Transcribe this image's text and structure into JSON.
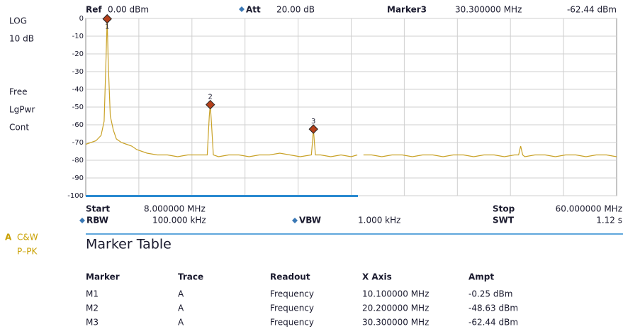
{
  "header": {
    "ref_label": "Ref",
    "ref_value": "0.00 dBm",
    "att_label": "Att",
    "att_value": "20.00 dB",
    "marker_label": "Marker3",
    "marker_freq": "30.300000 MHz",
    "marker_ampt": "-62.44 dBm"
  },
  "left_panel": {
    "scale": "LOG",
    "div": "10 dB",
    "mode1": "Free",
    "mode2": "LgPwr",
    "mode3": "Cont",
    "trace": "A",
    "trace_mode1": "C&W",
    "trace_mode2": "P–PK"
  },
  "footer": {
    "start_label": "Start",
    "start_value": "8.000000 MHz",
    "stop_label": "Stop",
    "stop_value": "60.000000 MHz",
    "rbw_label": "RBW",
    "rbw_value": "100.000 kHz",
    "vbw_label": "VBW",
    "vbw_value": "1.000 kHz",
    "swt_label": "SWT",
    "swt_value": "1.12 s"
  },
  "marker_table": {
    "title": "Marker Table",
    "headers": [
      "Marker",
      "Trace",
      "Readout",
      "X Axis",
      "Ampt"
    ],
    "rows": [
      [
        "M1",
        "A",
        "Frequency",
        "10.100000 MHz",
        "-0.25 dBm"
      ],
      [
        "M2",
        "A",
        "Frequency",
        "20.200000 MHz",
        "-48.63 dBm"
      ],
      [
        "M3",
        "A",
        "Frequency",
        "30.300000 MHz",
        "-62.44 dBm"
      ]
    ]
  },
  "chart_data": {
    "type": "line",
    "xlim": [
      8,
      60
    ],
    "ylim": [
      -100,
      0
    ],
    "yticks": [
      0,
      -10,
      -20,
      -30,
      -40,
      -50,
      -60,
      -70,
      -80,
      -90,
      -100
    ],
    "grid": true,
    "series": [
      {
        "name": "A",
        "color": "#c9a227",
        "x": [
          8,
          8.5,
          9,
          9.5,
          9.8,
          10,
          10.1,
          10.2,
          10.4,
          10.7,
          11,
          11.5,
          12,
          12.5,
          13,
          14,
          15,
          16,
          17,
          18,
          19,
          19.9,
          20.1,
          20.2,
          20.3,
          20.5,
          21,
          22,
          23,
          24,
          25,
          26,
          27,
          28,
          29,
          30.1,
          30.2,
          30.3,
          30.4,
          30.5,
          31,
          32,
          33,
          34,
          34.6,
          34.9,
          35.2,
          36,
          37,
          38,
          39,
          40,
          41,
          42,
          43,
          44,
          45,
          46,
          47,
          48,
          49,
          50,
          50.4,
          50.6,
          50.8,
          51,
          52,
          53,
          54,
          55,
          56,
          57,
          58,
          59,
          60
        ],
        "values": [
          -71,
          -70,
          -69,
          -66,
          -58,
          -20,
          -0.25,
          -25,
          -55,
          -63,
          -68,
          -70,
          -71,
          -72,
          -74,
          -76,
          -77,
          -77,
          -78,
          -77,
          -77,
          -77,
          -55,
          -48.63,
          -58,
          -77,
          -78,
          -77,
          -77,
          -78,
          -77,
          -77,
          -76,
          -77,
          -78,
          -77,
          -70,
          -62.44,
          -70,
          -77,
          -77,
          -78,
          -77,
          -78,
          -77,
          null,
          -77,
          -77,
          -78,
          -77,
          -77,
          -78,
          -77,
          -77,
          -78,
          -77,
          -77,
          -78,
          -77,
          -77,
          -78,
          -77,
          -77,
          -72,
          -77,
          -78,
          -77,
          -77,
          -78,
          -77,
          -77,
          -78,
          -77,
          -77,
          -78
        ]
      }
    ],
    "markers": [
      {
        "label": "1",
        "x": 10.1,
        "y": -0.25
      },
      {
        "label": "2",
        "x": 20.2,
        "y": -48.63
      },
      {
        "label": "3",
        "x": 30.3,
        "y": -62.44
      }
    ]
  }
}
